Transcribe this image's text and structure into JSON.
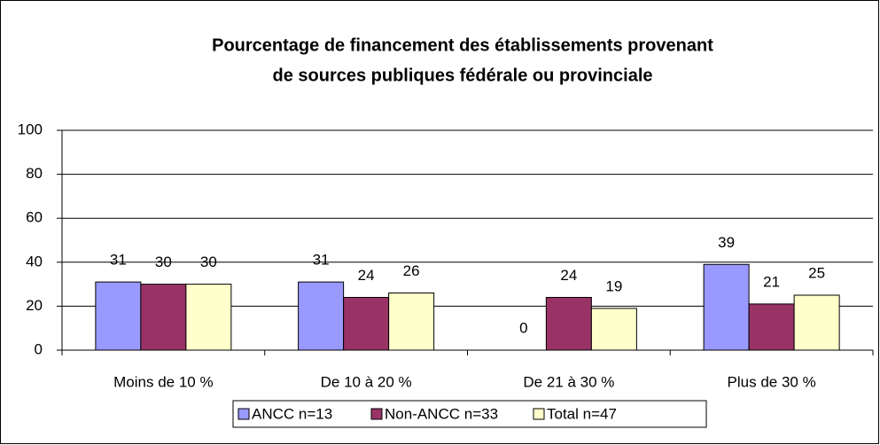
{
  "chart_data": {
    "type": "bar",
    "title": [
      "Pourcentage de financement des établissements provenant",
      "de sources publiques fédérale ou provinciale"
    ],
    "categories": [
      "Moins de 10 %",
      "De 10 à 20 %",
      "De 21 à 30 %",
      "Plus de 30 %"
    ],
    "series": [
      {
        "name": "ANCC n=13",
        "color": "#9999ff",
        "values": [
          31,
          31,
          0,
          39
        ]
      },
      {
        "name": "Non-ANCC n=33",
        "color": "#993366",
        "values": [
          30,
          24,
          24,
          21
        ]
      },
      {
        "name": "Total n=47",
        "color": "#ffffcc",
        "values": [
          30,
          26,
          19,
          25
        ]
      }
    ],
    "ylim": [
      0,
      100
    ],
    "yticks": [
      0,
      20,
      40,
      60,
      80,
      100
    ],
    "grid": true,
    "legend": "bottom"
  }
}
